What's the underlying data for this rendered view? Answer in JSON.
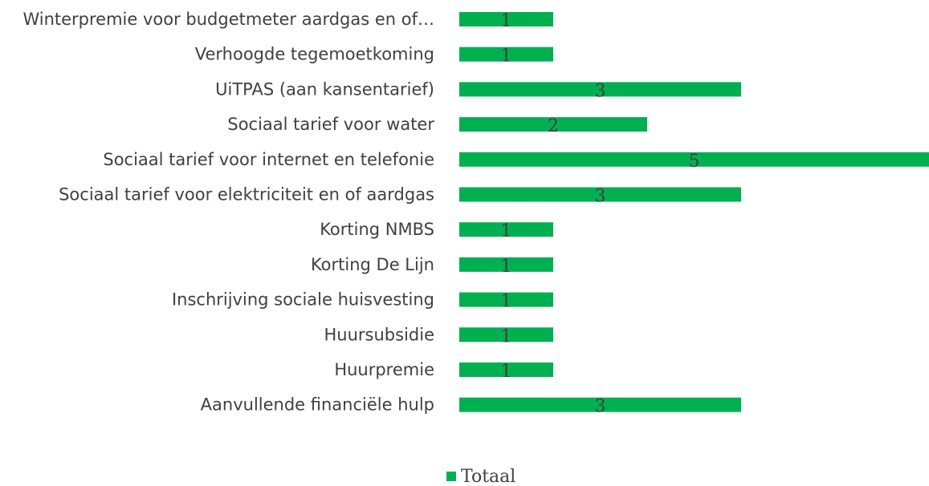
{
  "chart_data": {
    "type": "bar",
    "orientation": "horizontal",
    "categories": [
      "Winterpremie voor budgetmeter aardgas en of…",
      "Verhoogde tegemoetkoming",
      "UiTPAS (aan kansentarief)",
      "Sociaal tarief voor water",
      "Sociaal tarief voor internet en telefonie",
      "Sociaal tarief voor elektriciteit en of aardgas",
      "Korting NMBS",
      "Korting De Lijn",
      "Inschrijving sociale huisvesting",
      "Huursubsidie",
      "Huurpremie",
      "Aanvullende financiële hulp"
    ],
    "series": [
      {
        "name": "Totaal",
        "color": "#00b050",
        "values": [
          1,
          1,
          3,
          2,
          5,
          3,
          1,
          1,
          1,
          1,
          1,
          3
        ]
      }
    ],
    "xlim": [
      0,
      5
    ],
    "legend": "bottom"
  }
}
